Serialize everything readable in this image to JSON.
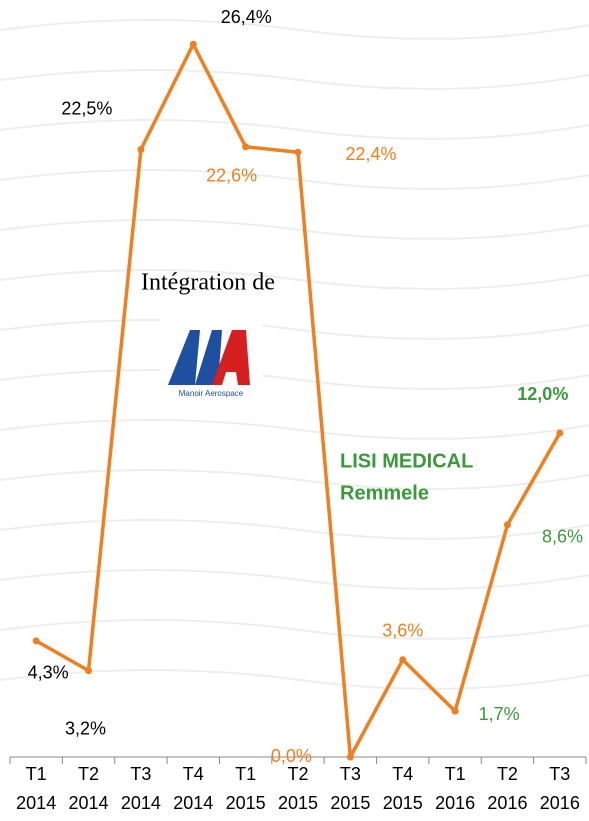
{
  "chart_data": {
    "type": "line",
    "categories": [
      [
        "T1",
        "2014"
      ],
      [
        "T2",
        "2014"
      ],
      [
        "T3",
        "2014"
      ],
      [
        "T4",
        "2014"
      ],
      [
        "T1",
        "2015"
      ],
      [
        "T2",
        "2015"
      ],
      [
        "T3",
        "2015"
      ],
      [
        "T4",
        "2015"
      ],
      [
        "T1",
        "2016"
      ],
      [
        "T2",
        "2016"
      ],
      [
        "T3",
        "2016"
      ]
    ],
    "values": [
      4.3,
      3.2,
      22.5,
      26.4,
      22.6,
      22.4,
      0.0,
      3.6,
      1.7,
      8.6,
      12.0
    ],
    "value_labels": [
      "4,3%",
      "3,2%",
      "22,5%",
      "26,4%",
      "22,6%",
      "22,4%",
      "0,0%",
      "3,6%",
      "1,7%",
      "8,6%",
      "12,0%"
    ],
    "value_label_colors": [
      "#000000",
      "#000000",
      "#000000",
      "#000000",
      "#f07f1f",
      "#f07f1f",
      "#f07f1f",
      "#f07f1f",
      "#3a9a3a",
      "#3a9a3a",
      "#3a9a3a"
    ],
    "color": "#f07f1f",
    "ylim": [
      0,
      28
    ],
    "annotations": {
      "integration": "Intégration de",
      "logo": "Manoir Aerospace",
      "medical": "LISI MEDICAL",
      "remmele": "Remmele"
    }
  }
}
